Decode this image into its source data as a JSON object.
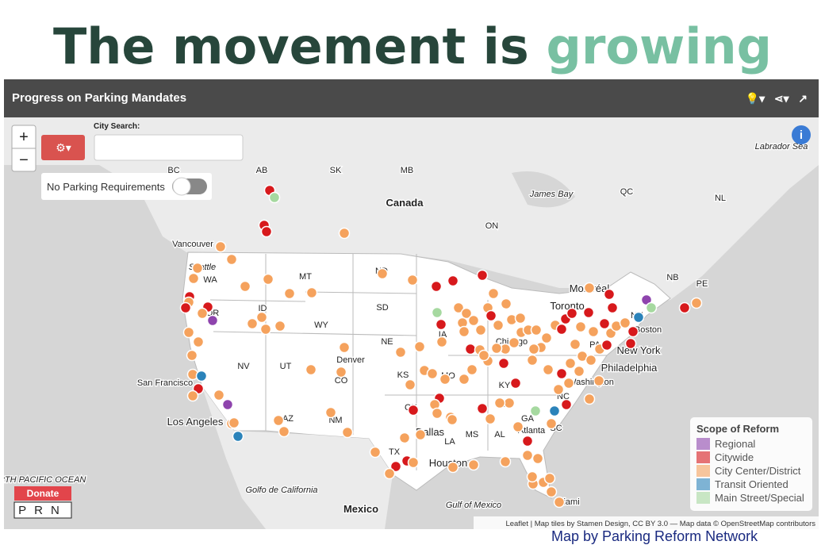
{
  "headline": {
    "part1": "The movement is",
    "part2": "growing"
  },
  "header": {
    "title": "Progress on Parking Mandates"
  },
  "controls": {
    "zoom_in": "+",
    "zoom_out": "−",
    "search_label": "City Search:",
    "toggle_label": "No Parking Requirements",
    "info": "i"
  },
  "map_labels": [
    "AB",
    "SK",
    "MB",
    "QC",
    "NL",
    "Canada",
    "James Bay",
    "ON",
    "Labrador Sea",
    "BC",
    "Vancouver",
    "Seattle",
    "WA",
    "MT",
    "ND",
    "SD",
    "WY",
    "ID",
    "OR",
    "NV",
    "UT",
    "CO",
    "Denver",
    "NE",
    "KS",
    "MO",
    "IA",
    "Chicago",
    "Toronto",
    "Montréal",
    "NB",
    "PE",
    "NH",
    "Boston",
    "New York",
    "Philadelphia",
    "PA",
    "Washington",
    "KY",
    "TN",
    "NC",
    "SC",
    "GA",
    "AL",
    "MS",
    "LA",
    "OK",
    "TX",
    "Dallas",
    "Houston",
    "AZ",
    "NM",
    "Los Angeles",
    "San Francisco",
    "Atlanta",
    "Miami",
    "Mexico",
    "Golfo de California",
    "Gulf of Mexico",
    "NORTH PACIFIC OCEAN"
  ],
  "legend": {
    "title": "Scope of Reform",
    "items": [
      {
        "label": "Regional",
        "color": "#8e44ad"
      },
      {
        "label": "Citywide",
        "color": "#d7191c"
      },
      {
        "label": "City Center/District",
        "color": "#f5a25d"
      },
      {
        "label": "Transit Oriented",
        "color": "#2b83ba"
      },
      {
        "label": "Main Street/Special",
        "color": "#a6d9a0"
      }
    ]
  },
  "donate": {
    "button": "Donate",
    "logo": "PRN"
  },
  "attribution": "Leaflet | Map tiles by Stamen Design, CC BY 3.0 — Map data © OpenStreetMap contributors",
  "footer": "Map by Parking Reform Network"
}
